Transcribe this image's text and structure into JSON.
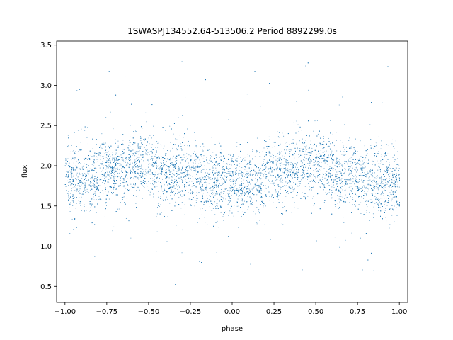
{
  "chart_data": {
    "type": "scatter",
    "title": "1SWASPJ134552.64-513506.2 Period 8892299.0s",
    "xlabel": "phase",
    "ylabel": "flux",
    "xlim": [
      -1.05,
      1.05
    ],
    "ylim": [
      0.3,
      3.55
    ],
    "xticks": [
      -1.0,
      -0.75,
      -0.5,
      -0.25,
      0.0,
      0.25,
      0.5,
      0.75,
      1.0
    ],
    "xtick_labels": [
      "−1.00",
      "−0.75",
      "−0.50",
      "−0.25",
      "0.00",
      "0.25",
      "0.50",
      "0.75",
      "1.00"
    ],
    "yticks": [
      0.5,
      1.0,
      1.5,
      2.0,
      2.5,
      3.0,
      3.5
    ],
    "ytick_labels": [
      "0.5",
      "1.0",
      "1.5",
      "2.0",
      "2.5",
      "3.0",
      "3.5"
    ],
    "grid": false,
    "marker_color": "#1f77b4",
    "point_count": 12000,
    "series": [
      {
        "phase_range": [
          -1.0,
          1.0
        ],
        "flux_center": 1.9,
        "flux_spread": 0.2,
        "flux_min": 0.43,
        "flux_max": 3.38,
        "segments": [
          {
            "x": [
              -1.0,
              -0.8
            ],
            "center": 1.85
          },
          {
            "x": [
              -0.8,
              -0.62
            ],
            "center": 1.95
          },
          {
            "x": [
              -0.62,
              -0.45
            ],
            "center": 2.0
          },
          {
            "x": [
              -0.45,
              -0.2
            ],
            "center": 1.9
          },
          {
            "x": [
              -0.2,
              0.0
            ],
            "center": 1.8
          },
          {
            "x": [
              0.0,
              0.2
            ],
            "center": 1.8
          },
          {
            "x": [
              0.2,
              0.38
            ],
            "center": 1.95
          },
          {
            "x": [
              0.38,
              0.55
            ],
            "center": 2.0
          },
          {
            "x": [
              0.55,
              0.8
            ],
            "center": 1.9
          },
          {
            "x": [
              0.8,
              1.0
            ],
            "center": 1.8
          }
        ]
      }
    ]
  }
}
